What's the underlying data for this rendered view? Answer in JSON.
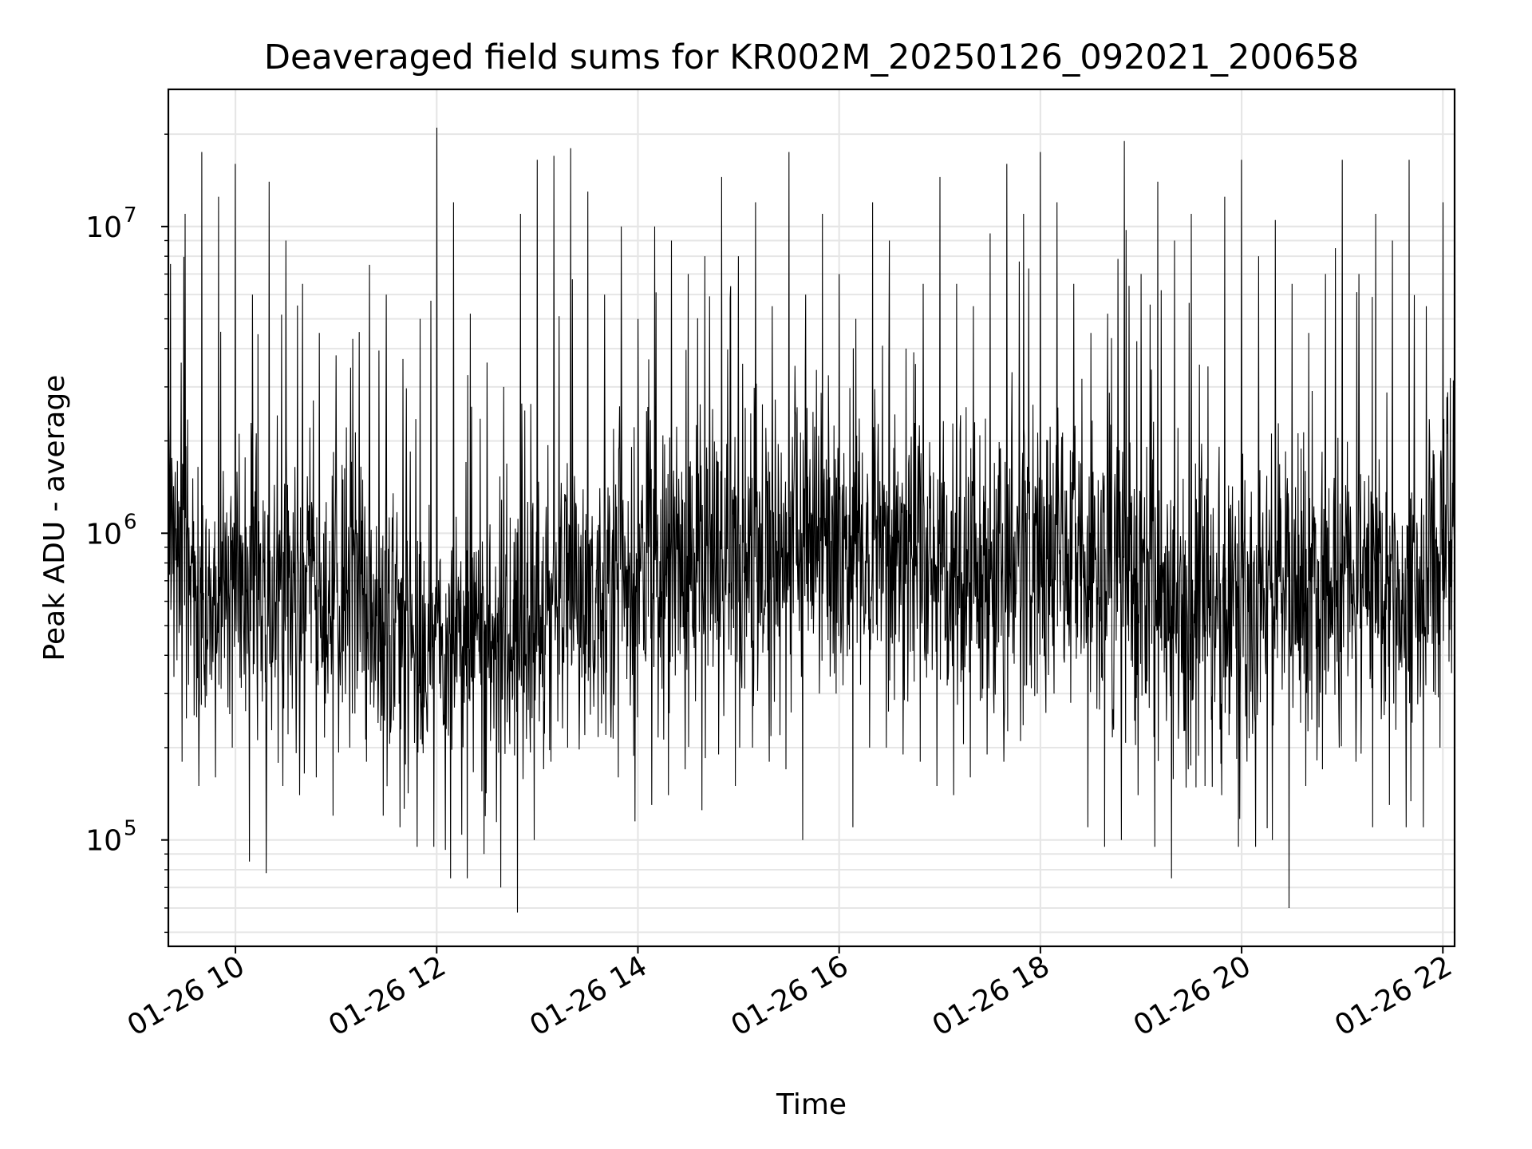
{
  "chart_data": {
    "type": "line",
    "title": "Deaveraged field sums for KR002M_20250126_092021_200658",
    "xlabel": "Time",
    "ylabel": "Peak ADU - average",
    "yscale": "log",
    "xlim": [
      "2025-01-26 09:20",
      "2025-01-26 22:07"
    ],
    "ylim": [
      45000,
      28000000
    ],
    "grid": true,
    "line_color": "#000000",
    "x_ticks": [
      "01-26 10",
      "01-26 12",
      "01-26 14",
      "01-26 16",
      "01-26 18",
      "01-26 20",
      "01-26 22"
    ],
    "y_ticks": [
      {
        "base": "10",
        "exp": "5"
      },
      {
        "base": "10",
        "exp": "6"
      },
      {
        "base": "10",
        "exp": "7"
      }
    ],
    "series": [
      {
        "x": [
          "2025-01-26 09:20",
          "2025-01-26 09:30",
          "2025-01-26 09:40",
          "2025-01-26 09:50",
          "2025-01-26 10:00",
          "2025-01-26 10:10",
          "2025-01-26 10:20",
          "2025-01-26 10:30",
          "2025-01-26 10:40",
          "2025-01-26 10:50",
          "2025-01-26 11:00",
          "2025-01-26 11:10",
          "2025-01-26 11:20",
          "2025-01-26 11:30",
          "2025-01-26 11:40",
          "2025-01-26 11:50",
          "2025-01-26 12:00",
          "2025-01-26 12:10",
          "2025-01-26 12:20",
          "2025-01-26 12:30",
          "2025-01-26 12:40",
          "2025-01-26 12:50",
          "2025-01-26 13:00",
          "2025-01-26 13:10",
          "2025-01-26 13:20",
          "2025-01-26 13:30",
          "2025-01-26 13:40",
          "2025-01-26 13:50",
          "2025-01-26 14:00",
          "2025-01-26 14:10",
          "2025-01-26 14:20",
          "2025-01-26 14:30",
          "2025-01-26 14:40",
          "2025-01-26 14:50",
          "2025-01-26 15:00",
          "2025-01-26 15:10",
          "2025-01-26 15:20",
          "2025-01-26 15:30",
          "2025-01-26 15:40",
          "2025-01-26 15:50",
          "2025-01-26 16:00",
          "2025-01-26 16:10",
          "2025-01-26 16:20",
          "2025-01-26 16:30",
          "2025-01-26 16:40",
          "2025-01-26 16:50",
          "2025-01-26 17:00",
          "2025-01-26 17:10",
          "2025-01-26 17:20",
          "2025-01-26 17:30",
          "2025-01-26 17:40",
          "2025-01-26 17:50",
          "2025-01-26 18:00",
          "2025-01-26 18:10",
          "2025-01-26 18:20",
          "2025-01-26 18:30",
          "2025-01-26 18:40",
          "2025-01-26 18:50",
          "2025-01-26 19:00",
          "2025-01-26 19:10",
          "2025-01-26 19:20",
          "2025-01-26 19:30",
          "2025-01-26 19:40",
          "2025-01-26 19:50",
          "2025-01-26 20:00",
          "2025-01-26 20:10",
          "2025-01-26 20:20",
          "2025-01-26 20:30",
          "2025-01-26 20:40",
          "2025-01-26 20:50",
          "2025-01-26 21:00",
          "2025-01-26 21:10",
          "2025-01-26 21:20",
          "2025-01-26 21:30",
          "2025-01-26 21:40",
          "2025-01-26 21:50",
          "2025-01-26 22:00",
          "2025-01-26 22:07"
        ],
        "y": [
          1000000,
          850000,
          620000,
          560000,
          700000,
          750000,
          660000,
          640000,
          620000,
          600000,
          640000,
          680000,
          560000,
          520000,
          470000,
          420000,
          520000,
          520000,
          480000,
          440000,
          430000,
          470000,
          560000,
          600000,
          660000,
          700000,
          700000,
          720000,
          740000,
          720000,
          700000,
          720000,
          740000,
          760000,
          760000,
          800000,
          820000,
          860000,
          880000,
          900000,
          960000,
          940000,
          880000,
          860000,
          840000,
          820000,
          780000,
          760000,
          740000,
          760000,
          800000,
          840000,
          900000,
          920000,
          880000,
          820000,
          760000,
          700000,
          660000,
          640000,
          620000,
          600000,
          580000,
          580000,
          600000,
          620000,
          640000,
          660000,
          700000,
          720000,
          760000,
          760000,
          740000,
          700000,
          680000,
          700000,
          1000000,
          1400000
        ],
        "spike_high": [
          18000000,
          11000000,
          17500000,
          12500000,
          16000000,
          6000000,
          14000000,
          9000000,
          6500000,
          4500000,
          3800000,
          4300000,
          7500000,
          6000000,
          3700000,
          5000000,
          21000000,
          12000000,
          5200000,
          3600000,
          3000000,
          11000000,
          16500000,
          17000000,
          18000000,
          13000000,
          6000000,
          10000000,
          5000000,
          10000000,
          9000000,
          7000000,
          8000000,
          14500000,
          8000000,
          12000000,
          5500000,
          17500000,
          6000000,
          11000000,
          7000000,
          5000000,
          12000000,
          9000000,
          4000000,
          6500000,
          14500000,
          6500000,
          5500000,
          9500000,
          16000000,
          11000000,
          17500000,
          12000000,
          6500000,
          4500000,
          5200000,
          19000000,
          7000000,
          14000000,
          9000000,
          11000000,
          3500000,
          12500000,
          16500000,
          8000000,
          10500000,
          6500000,
          4500000,
          7000000,
          16500000,
          7000000,
          11000000,
          9000000,
          16500000,
          5500000,
          12000000,
          3000000
        ],
        "spike_low": [
          780000,
          180000,
          150000,
          160000,
          200000,
          85000,
          78000,
          150000,
          140000,
          160000,
          120000,
          200000,
          180000,
          120000,
          110000,
          95000,
          95000,
          75000,
          75000,
          90000,
          70000,
          58000,
          100000,
          180000,
          200000,
          220000,
          240000,
          160000,
          115000,
          130000,
          140000,
          170000,
          125000,
          190000,
          150000,
          200000,
          180000,
          170000,
          100000,
          300000,
          300000,
          110000,
          200000,
          200000,
          190000,
          180000,
          150000,
          140000,
          160000,
          190000,
          180000,
          210000,
          300000,
          300000,
          280000,
          110000,
          95000,
          100000,
          140000,
          95000,
          75000,
          170000,
          150000,
          140000,
          95000,
          95000,
          100000,
          60000,
          150000,
          170000,
          200000,
          180000,
          110000,
          130000,
          110000,
          110000,
          200000,
          350000
        ]
      }
    ]
  }
}
